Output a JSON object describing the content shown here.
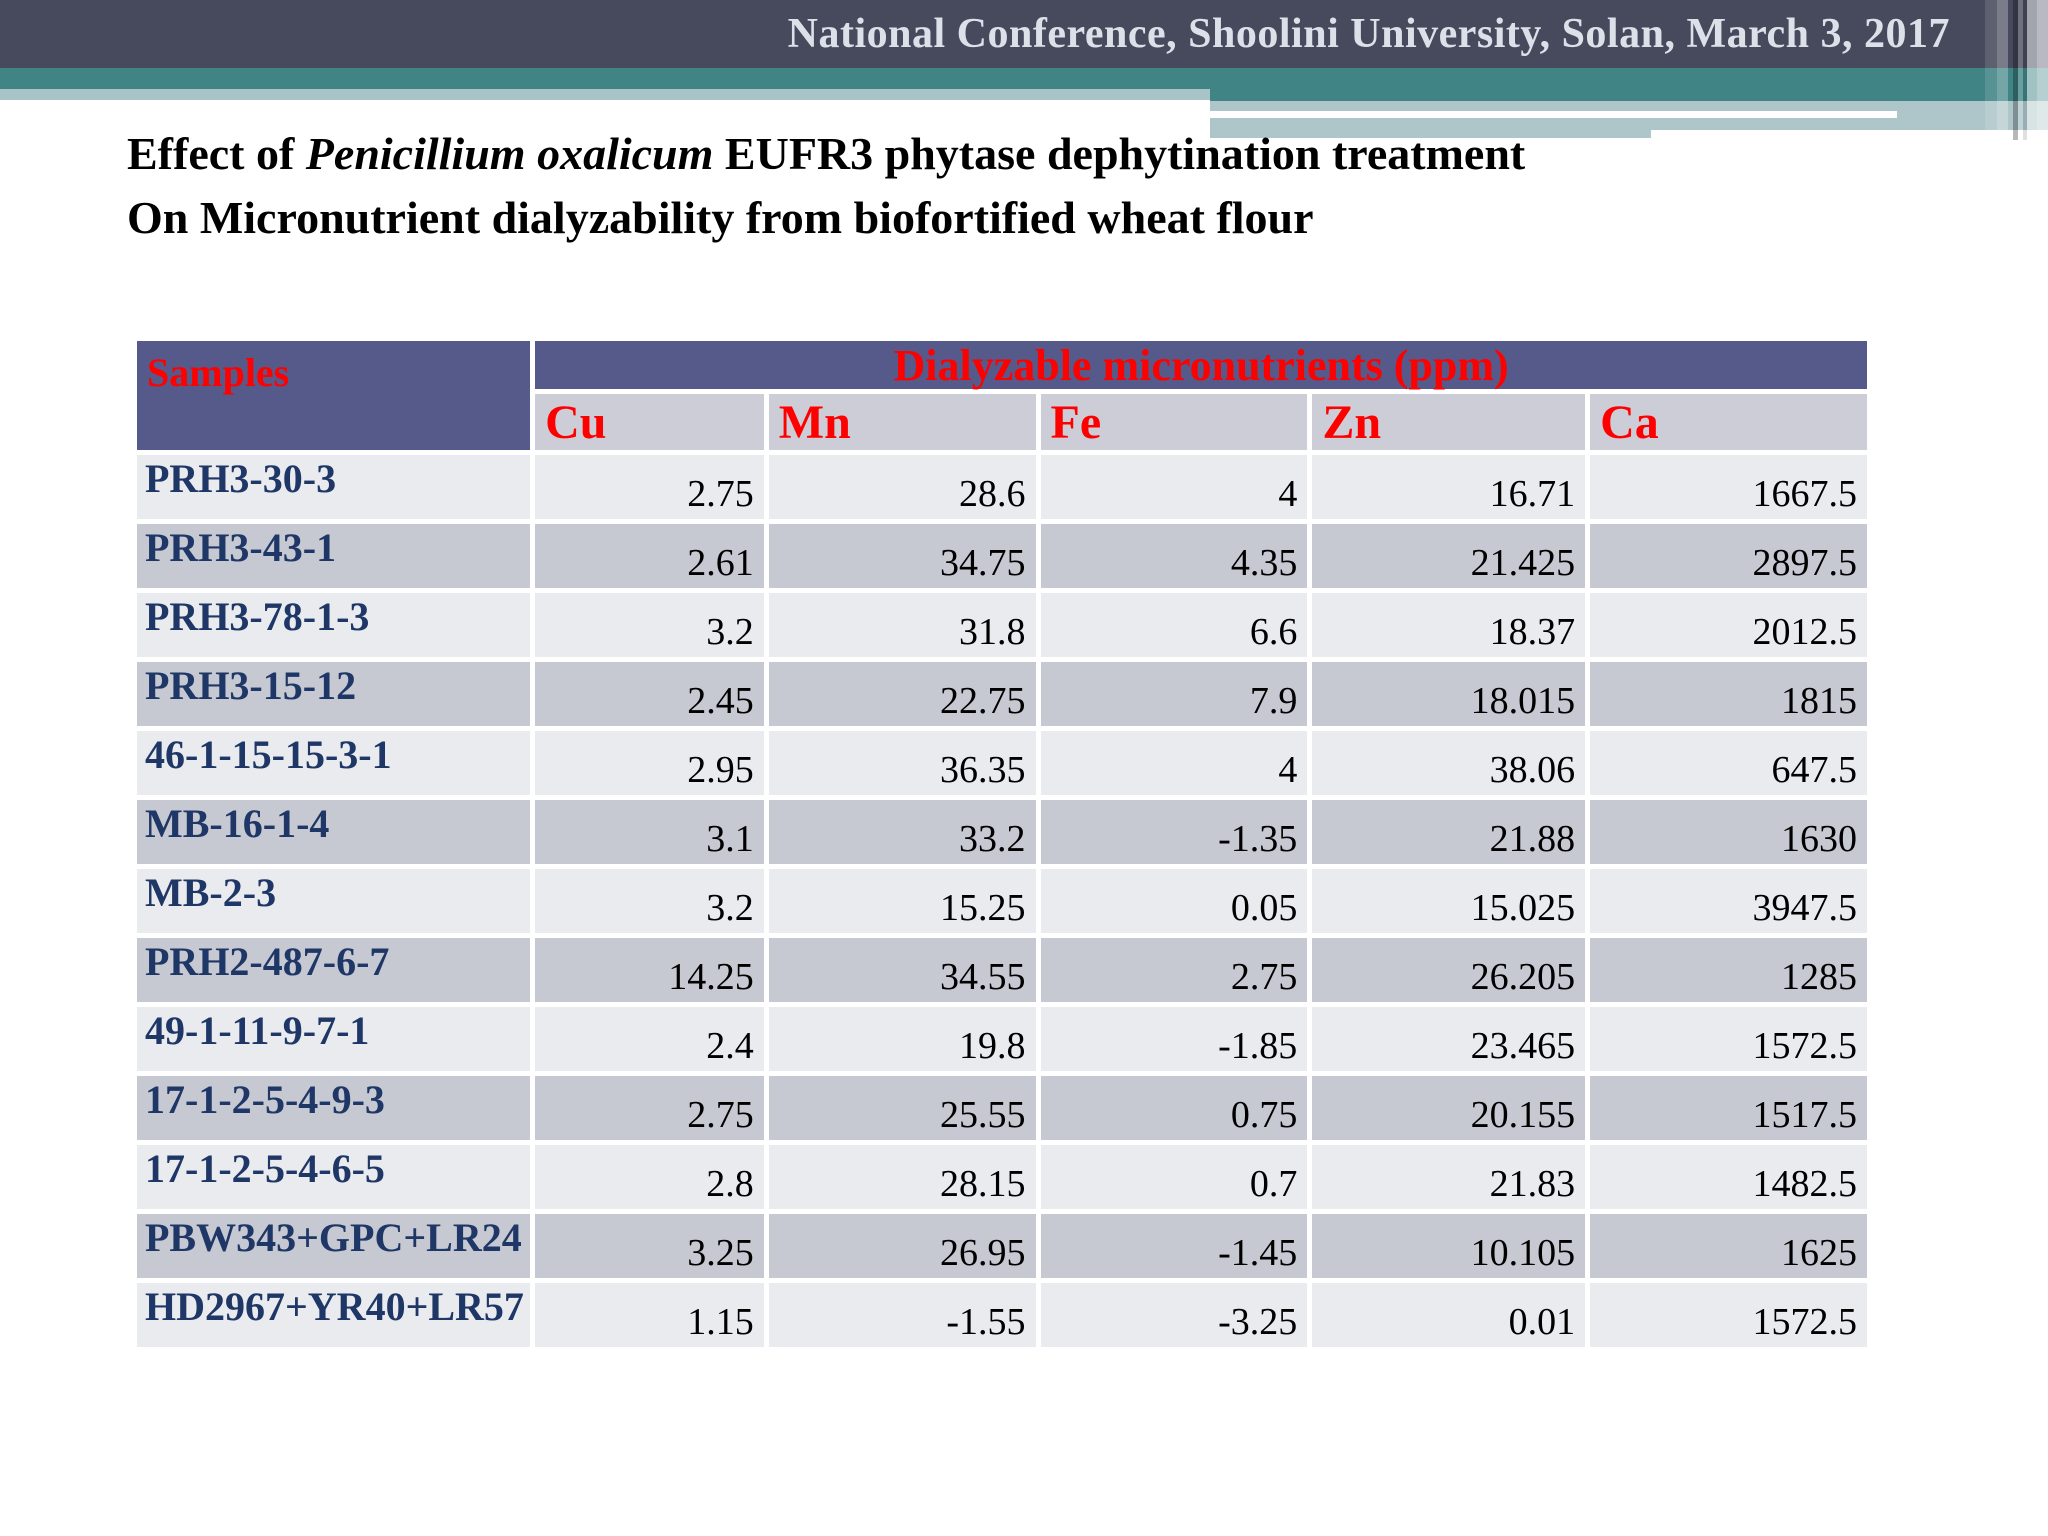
{
  "banner": {
    "text": "National Conference, Shoolini University, Solan, March 3, 2017"
  },
  "title": {
    "line1_prefix": "Effect of ",
    "line1_italic": "Penicillium oxalicum",
    "line1_suffix": " EUFR3 phytase dephytination treatment",
    "line2": "On Micronutrient dialyzability from biofortified wheat flour"
  },
  "table": {
    "row_header": "Samples",
    "group_header": "Dialyzable micronutrients (ppm)",
    "columns": [
      "Cu",
      "Mn",
      "Fe",
      "Zn",
      "Ca"
    ],
    "rows": [
      {
        "name": "PRH3-30-3",
        "values": [
          "2.75",
          "28.6",
          "4",
          "16.71",
          "1667.5"
        ]
      },
      {
        "name": "PRH3-43-1",
        "values": [
          "2.61",
          "34.75",
          "4.35",
          "21.425",
          "2897.5"
        ]
      },
      {
        "name": "PRH3-78-1-3",
        "values": [
          "3.2",
          "31.8",
          "6.6",
          "18.37",
          "2012.5"
        ]
      },
      {
        "name": "PRH3-15-12",
        "values": [
          "2.45",
          "22.75",
          "7.9",
          "18.015",
          "1815"
        ]
      },
      {
        "name": "46-1-15-15-3-1",
        "values": [
          "2.95",
          "36.35",
          "4",
          "38.06",
          "647.5"
        ]
      },
      {
        "name": "MB-16-1-4",
        "values": [
          "3.1",
          "33.2",
          "-1.35",
          "21.88",
          "1630"
        ]
      },
      {
        "name": "MB-2-3",
        "values": [
          "3.2",
          "15.25",
          "0.05",
          "15.025",
          "3947.5"
        ]
      },
      {
        "name": "PRH2-487-6-7",
        "values": [
          "14.25",
          "34.55",
          "2.75",
          "26.205",
          "1285"
        ]
      },
      {
        "name": "49-1-11-9-7-1",
        "values": [
          "2.4",
          "19.8",
          "-1.85",
          "23.465",
          "1572.5"
        ]
      },
      {
        "name": "17-1-2-5-4-9-3",
        "values": [
          "2.75",
          "25.55",
          "0.75",
          "20.155",
          "1517.5"
        ]
      },
      {
        "name": "17-1-2-5-4-6-5",
        "values": [
          "2.8",
          "28.15",
          "0.7",
          "21.83",
          "1482.5"
        ]
      },
      {
        "name": "PBW343+GPC+LR24",
        "values": [
          "3.25",
          "26.95",
          "-1.45",
          "10.105",
          "1625"
        ]
      },
      {
        "name": "HD2967+YR40+LR57",
        "values": [
          "1.15",
          "-1.55",
          "-3.25",
          "0.01",
          "1572.5"
        ]
      }
    ]
  },
  "colors": {
    "banner_background": "#474a5c",
    "banner_text": "#dce0e9",
    "teal_band": "#408486",
    "light_teal_band": "#a9c4c8",
    "table_header_purple": "#565a8b",
    "subheader_gray": "#cccdd7",
    "row_light": "#eaebef",
    "row_dark": "#c6c8d2",
    "header_text_red": "#ff0000",
    "sample_name_navy": "#1f3766",
    "value_text": "#000000"
  }
}
